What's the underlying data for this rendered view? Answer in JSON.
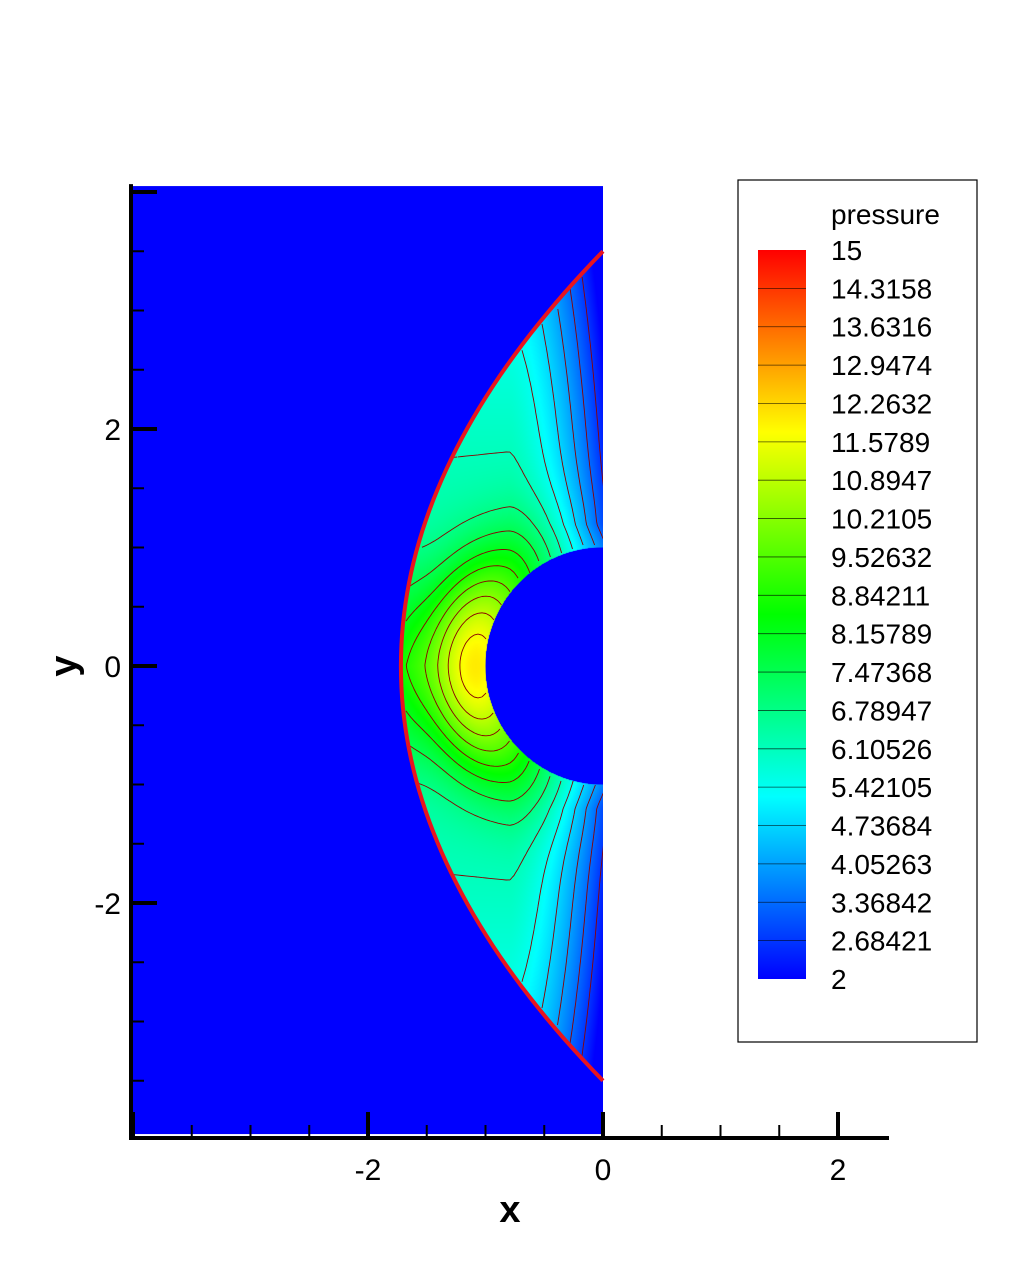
{
  "chart_data": {
    "type": "heatmap",
    "title": "",
    "xlabel": "x",
    "ylabel": "y",
    "xlim": [
      -4.0,
      2.4
    ],
    "ylim": [
      -3.95,
      4.05
    ],
    "x_ticks": [
      -2,
      0,
      2
    ],
    "y_ticks": [
      -2,
      0,
      2
    ],
    "x_tick_labels": [
      "-2",
      "0",
      "2"
    ],
    "y_tick_labels": [
      "-2",
      "0",
      "2"
    ],
    "variable": "pressure",
    "colorbar": {
      "label": "pressure",
      "min": 2,
      "max": 15,
      "levels": [
        "15",
        "14.3158",
        "13.6316",
        "12.9474",
        "12.2632",
        "11.5789",
        "10.8947",
        "10.2105",
        "9.52632",
        "8.84211",
        "8.15789",
        "7.47368",
        "6.78947",
        "6.10526",
        "5.42105",
        "4.73684",
        "4.05263",
        "3.36842",
        "2.68421",
        "2"
      ]
    },
    "domain": {
      "x_range": [
        -4.0,
        0.0
      ],
      "y_range": [
        -3.95,
        4.05
      ],
      "cylinder_center": [
        0,
        0
      ],
      "cylinder_radius": 1.0,
      "freestream_pressure": 2,
      "stagnation_pressure": 12.0,
      "shock_standoff_x": -1.72,
      "shock_exit_y": 3.5,
      "contour_lines": "on"
    }
  }
}
